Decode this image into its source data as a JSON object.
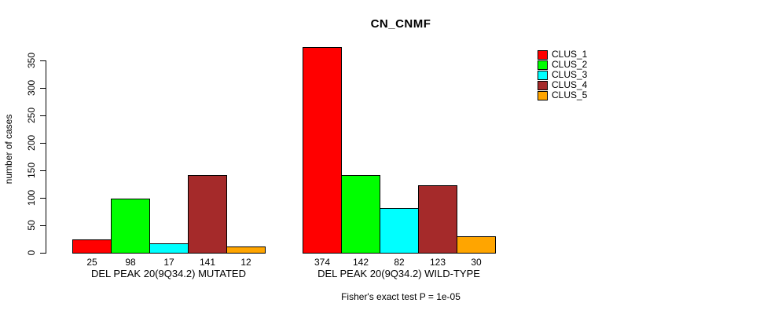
{
  "title": "CN_CNMF",
  "footer": "Fisher's exact test P = 1e-05",
  "chart_data": {
    "type": "bar",
    "title": "CN_CNMF",
    "xlabel": "",
    "ylabel": "number of cases",
    "ylim": [
      0,
      350
    ],
    "yticks": [
      0,
      50,
      100,
      150,
      200,
      250,
      300,
      350
    ],
    "grid": false,
    "bar_value_labels": true,
    "legend_position": "right",
    "legend": [
      "CLUS_1",
      "CLUS_2",
      "CLUS_3",
      "CLUS_4",
      "CLUS_5"
    ],
    "colors": [
      "#FF0000",
      "#00FF00",
      "#00FFFF",
      "#A52A2A",
      "#FFA500"
    ],
    "groups": [
      {
        "label": "DEL PEAK 20(9Q34.2) MUTATED",
        "values": [
          25,
          98,
          17,
          141,
          12
        ]
      },
      {
        "label": "DEL PEAK 20(9Q34.2) WILD-TYPE",
        "values": [
          374,
          142,
          82,
          123,
          30
        ]
      }
    ],
    "annotation": "Fisher's exact test P = 1e-05"
  }
}
